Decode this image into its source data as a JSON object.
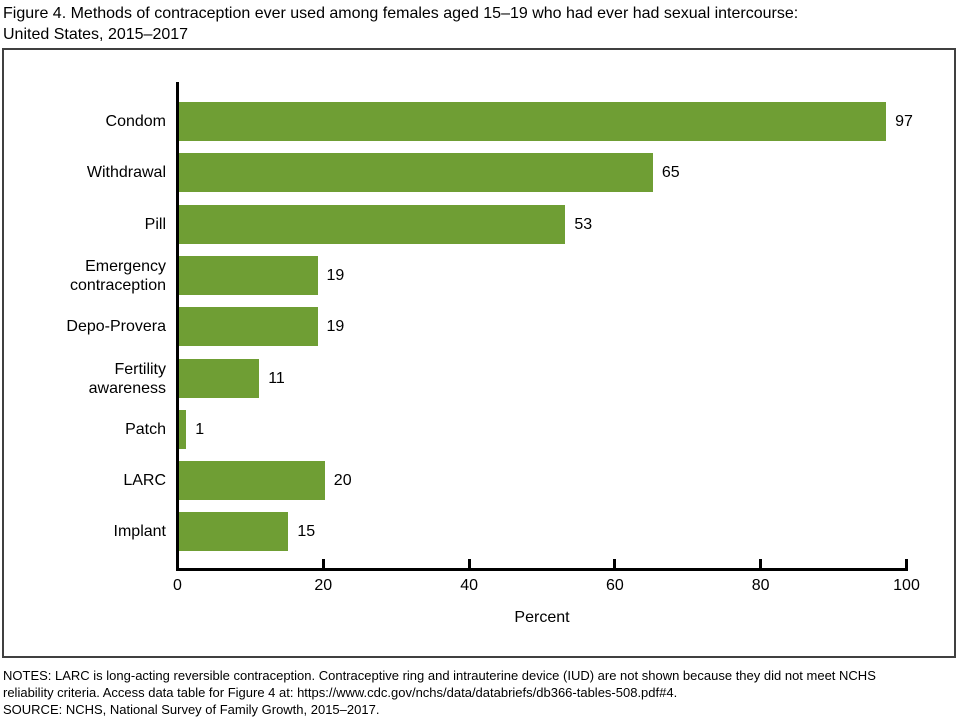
{
  "title": {
    "line1": "Figure 4. Methods of contraception ever used among females aged 15–19 who had ever had sexual intercourse:",
    "line2": "United States, 2015–2017"
  },
  "chart_data": {
    "type": "bar",
    "orientation": "horizontal",
    "title": "Figure 4. Methods of contraception ever used among females aged 15–19 who had ever had sexual intercourse: United States, 2015–2017",
    "categories": [
      "Condom",
      "Withdrawal",
      "Pill",
      "Emergency\ncontraception",
      "Depo-Provera",
      "Fertility\nawareness",
      "Patch",
      "LARC",
      "Implant"
    ],
    "values": [
      97,
      65,
      53,
      19,
      19,
      11,
      1,
      20,
      15
    ],
    "value_labels": [
      "97",
      "65",
      "53",
      "19",
      "19",
      "11",
      "1",
      "20",
      "15"
    ],
    "xlabel": "Percent",
    "ylabel": "",
    "xlim": [
      0,
      100
    ],
    "xticks": [
      0,
      20,
      40,
      60,
      80,
      100
    ],
    "grid": false,
    "bar_color": "#6F9E34"
  },
  "notes": {
    "line1": "NOTES: LARC is long-acting reversible contraception. Contraceptive ring and intrauterine device (IUD) are not shown because they did not meet NCHS",
    "line2": "reliability criteria. Access data table for Figure 4 at: https://www.cdc.gov/nchs/data/databriefs/db366-tables-508.pdf#4.",
    "line3": "SOURCE: NCHS, National Survey of Family Growth, 2015–2017."
  },
  "colors": {
    "bar": "#6F9E34",
    "axis": "#000000",
    "frame_border": "#404040",
    "text": "#000000"
  }
}
